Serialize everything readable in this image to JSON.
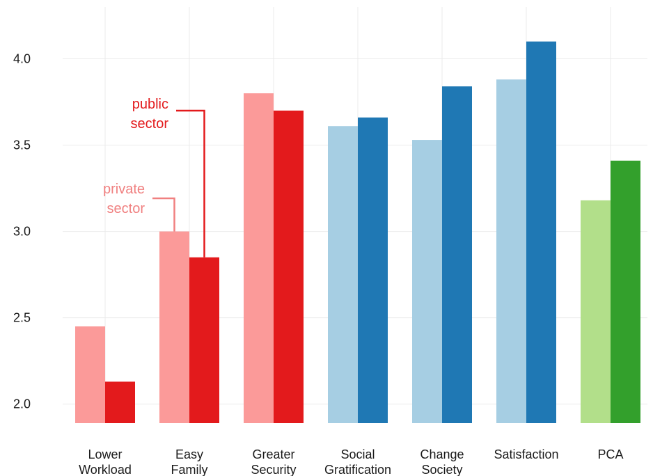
{
  "chart_data": {
    "type": "bar",
    "categories": [
      [
        "Lower",
        "Workload"
      ],
      [
        "Easy",
        "Family"
      ],
      [
        "Greater",
        "Security"
      ],
      [
        "Social",
        "Gratification"
      ],
      [
        "Change",
        "Society"
      ],
      [
        "Satisfaction"
      ],
      [
        "PCA"
      ]
    ],
    "series": [
      {
        "values": [
          2.45,
          3.0,
          3.8,
          3.61,
          3.53,
          3.88,
          3.18
        ]
      },
      {
        "values": [
          2.13,
          2.85,
          3.7,
          3.66,
          3.84,
          4.1,
          3.41
        ]
      }
    ],
    "bar_colors": [
      [
        "#fb9a99",
        "#e31a1c"
      ],
      [
        "#fb9a99",
        "#e31a1c"
      ],
      [
        "#fb9a99",
        "#e31a1c"
      ],
      [
        "#a6cee3",
        "#1f78b4"
      ],
      [
        "#a6cee3",
        "#1f78b4"
      ],
      [
        "#a6cee3",
        "#1f78b4"
      ],
      [
        "#b2df8a",
        "#33a02c"
      ]
    ],
    "yticks": [
      2.0,
      2.5,
      3.0,
      3.5,
      4.0
    ],
    "ytick_labels": [
      "2.0",
      "2.5",
      "3.0",
      "3.5",
      "4.0"
    ],
    "ylim": [
      1.89,
      4.3
    ],
    "grid": true,
    "annotations": [
      {
        "lines": [
          "public",
          "sector"
        ],
        "color": "#e31a1c",
        "target_category": 1,
        "target_series": 1
      },
      {
        "lines": [
          "private",
          "sector"
        ],
        "color": "#f08080",
        "target_category": 1,
        "target_series": 0
      }
    ],
    "title": "",
    "xlabel": "",
    "ylabel": ""
  }
}
